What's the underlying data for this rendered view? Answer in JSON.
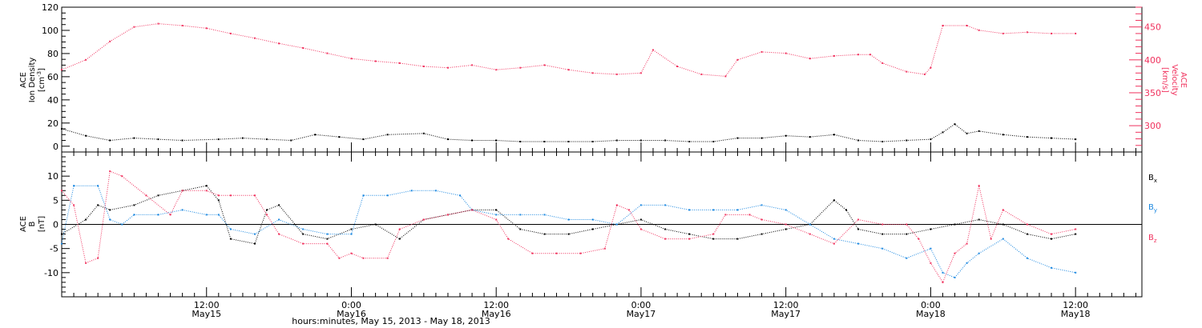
{
  "colors": {
    "black": "#000000",
    "red": "#f0325e",
    "blue": "#1a87e0"
  },
  "x_axis": {
    "title": "hours:minutes, May 15, 2013 - May 18, 2013",
    "ticks": [
      {
        "t": 12,
        "time": "12:00",
        "date": "May15"
      },
      {
        "t": 24,
        "time": "0:00",
        "date": "May16"
      },
      {
        "t": 36,
        "time": "12:00",
        "date": "May16"
      },
      {
        "t": 48,
        "time": "0:00",
        "date": "May17"
      },
      {
        "t": 60,
        "time": "12:00",
        "date": "May17"
      },
      {
        "t": 72,
        "time": "0:00",
        "date": "May18"
      },
      {
        "t": 84,
        "time": "12:00",
        "date": "May18"
      }
    ]
  },
  "top_panel": {
    "left_axis": {
      "label_lines": [
        "ACE",
        "Ion Density"
      ],
      "unit": "[cm",
      "unit_sup": "-3",
      "unit_end": "]",
      "ticks": [
        "0",
        "20",
        "40",
        "60",
        "80",
        "100",
        "120"
      ]
    },
    "right_axis": {
      "label_lines": [
        "ACE",
        "Velocity"
      ],
      "unit": "[km/s]",
      "ticks": [
        "300",
        "350",
        "400",
        "450"
      ]
    }
  },
  "bottom_panel": {
    "left_axis": {
      "label_lines": [
        "ACE",
        "B"
      ],
      "unit": "[nT]",
      "ticks": [
        "10",
        "5",
        "0",
        "-5",
        "-10"
      ]
    },
    "legend": [
      {
        "base": "B",
        "sub": "x",
        "color": "#000000"
      },
      {
        "base": "B",
        "sub": "y",
        "color": "#1a87e0"
      },
      {
        "base": "B",
        "sub": "z",
        "color": "#f0325e"
      }
    ]
  },
  "chart_data": [
    {
      "type": "scatter",
      "title": "",
      "x_unit": "hours since 2013-05-15 00:00 UT",
      "xlim": [
        0,
        89.5
      ],
      "ylim_left": [
        -5,
        120
      ],
      "ylim_right": [
        260,
        480
      ],
      "series": [
        {
          "key": "density",
          "name": "Ion Density",
          "axis": "left",
          "color": "#000000",
          "points": [
            [
              0,
              15
            ],
            [
              2,
              9
            ],
            [
              4,
              5
            ],
            [
              6,
              7
            ],
            [
              8,
              6
            ],
            [
              10,
              5
            ],
            [
              13,
              6
            ],
            [
              15,
              7
            ],
            [
              17,
              6
            ],
            [
              19,
              5
            ],
            [
              21,
              10
            ],
            [
              23,
              8
            ],
            [
              25,
              6
            ],
            [
              27,
              10
            ],
            [
              30,
              11
            ],
            [
              32,
              6
            ],
            [
              34,
              5
            ],
            [
              36,
              5
            ],
            [
              38,
              4
            ],
            [
              40,
              4
            ],
            [
              42,
              4
            ],
            [
              44,
              4
            ],
            [
              46,
              5
            ],
            [
              48,
              5
            ],
            [
              50,
              5
            ],
            [
              52,
              4
            ],
            [
              54,
              4
            ],
            [
              56,
              7
            ],
            [
              58,
              7
            ],
            [
              60,
              9
            ],
            [
              62,
              8
            ],
            [
              64,
              10
            ],
            [
              66,
              5
            ],
            [
              68,
              4
            ],
            [
              70,
              5
            ],
            [
              72,
              6
            ],
            [
              73,
              12
            ],
            [
              74,
              19
            ],
            [
              75,
              11
            ],
            [
              76,
              13
            ],
            [
              78,
              10
            ],
            [
              80,
              8
            ],
            [
              82,
              7
            ],
            [
              84,
              6
            ]
          ]
        },
        {
          "key": "velocity",
          "name": "Velocity",
          "axis": "right",
          "color": "#f0325e",
          "points": [
            [
              0,
              385
            ],
            [
              2,
              400
            ],
            [
              4,
              428
            ],
            [
              6,
              450
            ],
            [
              8,
              455
            ],
            [
              10,
              452
            ],
            [
              12,
              448
            ],
            [
              14,
              440
            ],
            [
              16,
              433
            ],
            [
              18,
              425
            ],
            [
              20,
              418
            ],
            [
              22,
              410
            ],
            [
              24,
              402
            ],
            [
              26,
              398
            ],
            [
              28,
              395
            ],
            [
              30,
              390
            ],
            [
              32,
              388
            ],
            [
              34,
              392
            ],
            [
              36,
              385
            ],
            [
              38,
              388
            ],
            [
              40,
              392
            ],
            [
              42,
              385
            ],
            [
              44,
              380
            ],
            [
              46,
              378
            ],
            [
              48,
              380
            ],
            [
              49,
              415
            ],
            [
              51,
              390
            ],
            [
              53,
              378
            ],
            [
              55,
              375
            ],
            [
              56,
              400
            ],
            [
              58,
              412
            ],
            [
              60,
              410
            ],
            [
              62,
              402
            ],
            [
              64,
              406
            ],
            [
              66,
              408
            ],
            [
              67,
              408
            ],
            [
              68,
              395
            ],
            [
              70,
              382
            ],
            [
              71.5,
              378
            ],
            [
              72,
              388
            ],
            [
              73,
              452
            ],
            [
              75,
              452
            ],
            [
              76,
              445
            ],
            [
              78,
              440
            ],
            [
              80,
              442
            ],
            [
              82,
              440
            ],
            [
              84,
              440
            ]
          ]
        }
      ]
    },
    {
      "type": "scatter",
      "title": "",
      "x_unit": "hours since 2013-05-15 00:00 UT",
      "xlim": [
        0,
        89.5
      ],
      "ylim": [
        -15,
        15
      ],
      "series": [
        {
          "key": "bx",
          "name": "Bx",
          "color": "#000000",
          "points": [
            [
              0,
              -2
            ],
            [
              2,
              1
            ],
            [
              3,
              4
            ],
            [
              4,
              3
            ],
            [
              6,
              4
            ],
            [
              8,
              6
            ],
            [
              10,
              7
            ],
            [
              12,
              8
            ],
            [
              13,
              5
            ],
            [
              14,
              -3
            ],
            [
              16,
              -4
            ],
            [
              17,
              3
            ],
            [
              18,
              4
            ],
            [
              20,
              -2
            ],
            [
              22,
              -3
            ],
            [
              24,
              -1
            ],
            [
              26,
              0
            ],
            [
              28,
              -3
            ],
            [
              30,
              1
            ],
            [
              32,
              2
            ],
            [
              34,
              3
            ],
            [
              36,
              3
            ],
            [
              38,
              -1
            ],
            [
              40,
              -2
            ],
            [
              42,
              -2
            ],
            [
              44,
              -1
            ],
            [
              46,
              0
            ],
            [
              48,
              1
            ],
            [
              50,
              -1
            ],
            [
              52,
              -2
            ],
            [
              54,
              -3
            ],
            [
              56,
              -3
            ],
            [
              58,
              -2
            ],
            [
              60,
              -1
            ],
            [
              62,
              0
            ],
            [
              64,
              5
            ],
            [
              65,
              3
            ],
            [
              66,
              -1
            ],
            [
              68,
              -2
            ],
            [
              70,
              -2
            ],
            [
              72,
              -1
            ],
            [
              74,
              0
            ],
            [
              76,
              1
            ],
            [
              78,
              0
            ],
            [
              80,
              -2
            ],
            [
              82,
              -3
            ],
            [
              84,
              -2
            ]
          ]
        },
        {
          "key": "by",
          "name": "By",
          "color": "#1a87e0",
          "points": [
            [
              0,
              -4
            ],
            [
              1,
              8
            ],
            [
              3,
              8
            ],
            [
              4,
              1
            ],
            [
              5,
              0
            ],
            [
              6,
              2
            ],
            [
              8,
              2
            ],
            [
              10,
              3
            ],
            [
              12,
              2
            ],
            [
              13,
              2
            ],
            [
              14,
              -1
            ],
            [
              16,
              -2
            ],
            [
              18,
              1
            ],
            [
              20,
              -1
            ],
            [
              22,
              -2
            ],
            [
              24,
              -2
            ],
            [
              25,
              6
            ],
            [
              27,
              6
            ],
            [
              29,
              7
            ],
            [
              31,
              7
            ],
            [
              33,
              6
            ],
            [
              34,
              3
            ],
            [
              36,
              2
            ],
            [
              38,
              2
            ],
            [
              40,
              2
            ],
            [
              42,
              1
            ],
            [
              44,
              1
            ],
            [
              46,
              0
            ],
            [
              48,
              4
            ],
            [
              50,
              4
            ],
            [
              52,
              3
            ],
            [
              54,
              3
            ],
            [
              56,
              3
            ],
            [
              58,
              4
            ],
            [
              60,
              3
            ],
            [
              62,
              0
            ],
            [
              64,
              -3
            ],
            [
              66,
              -4
            ],
            [
              68,
              -5
            ],
            [
              70,
              -7
            ],
            [
              72,
              -5
            ],
            [
              73,
              -10
            ],
            [
              74,
              -11
            ],
            [
              75,
              -8
            ],
            [
              76,
              -6
            ],
            [
              78,
              -3
            ],
            [
              80,
              -7
            ],
            [
              82,
              -9
            ],
            [
              84,
              -10
            ]
          ]
        },
        {
          "key": "bz",
          "name": "Bz",
          "color": "#f0325e",
          "points": [
            [
              0,
              7
            ],
            [
              1,
              4
            ],
            [
              2,
              -8
            ],
            [
              3,
              -7
            ],
            [
              4,
              11
            ],
            [
              5,
              10
            ],
            [
              7,
              6
            ],
            [
              9,
              2
            ],
            [
              10,
              7
            ],
            [
              12,
              7
            ],
            [
              13,
              6
            ],
            [
              14,
              6
            ],
            [
              16,
              6
            ],
            [
              17,
              2
            ],
            [
              18,
              -2
            ],
            [
              20,
              -4
            ],
            [
              22,
              -4
            ],
            [
              23,
              -7
            ],
            [
              24,
              -6
            ],
            [
              25,
              -7
            ],
            [
              27,
              -7
            ],
            [
              28,
              -1
            ],
            [
              30,
              1
            ],
            [
              32,
              2
            ],
            [
              34,
              3
            ],
            [
              36,
              1
            ],
            [
              37,
              -3
            ],
            [
              39,
              -6
            ],
            [
              41,
              -6
            ],
            [
              43,
              -6
            ],
            [
              45,
              -5
            ],
            [
              46,
              4
            ],
            [
              47,
              3
            ],
            [
              48,
              -1
            ],
            [
              50,
              -3
            ],
            [
              52,
              -3
            ],
            [
              54,
              -2
            ],
            [
              55,
              2
            ],
            [
              57,
              2
            ],
            [
              58,
              1
            ],
            [
              60,
              0
            ],
            [
              62,
              -2
            ],
            [
              64,
              -4
            ],
            [
              66,
              1
            ],
            [
              68,
              0
            ],
            [
              70,
              0
            ],
            [
              71,
              -3
            ],
            [
              72,
              -8
            ],
            [
              73,
              -12
            ],
            [
              74,
              -6
            ],
            [
              75,
              -4
            ],
            [
              76,
              8
            ],
            [
              77,
              -3
            ],
            [
              78,
              3
            ],
            [
              80,
              0
            ],
            [
              82,
              -2
            ],
            [
              84,
              -1
            ]
          ]
        }
      ]
    }
  ]
}
